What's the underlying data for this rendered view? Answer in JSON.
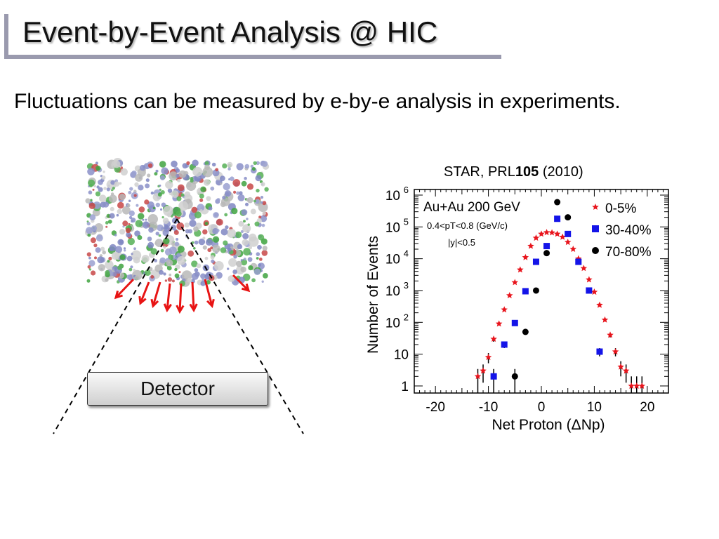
{
  "slide": {
    "title": "Event-by-Event Analysis @ HIC",
    "subtitle": "Fluctuations can be measured by e-by-e analysis in experiments.",
    "citation": {
      "prefix": "STAR, PRL",
      "volume": "105",
      "year": "(2010)"
    },
    "detector_label": "Detector"
  },
  "chart_data": {
    "type": "scatter",
    "xlabel": "Net Proton (ΔNp)",
    "ylabel": "Number of Events",
    "xlim": [
      -24,
      24
    ],
    "ylim": [
      0.6,
      1500000
    ],
    "yscale": "log",
    "xticks": [
      -20,
      -10,
      0,
      10,
      20
    ],
    "yticks": [
      {
        "v": 1,
        "label": "1"
      },
      {
        "v": 10,
        "label": "10"
      },
      {
        "v": 100,
        "label": "10",
        "exp": "2"
      },
      {
        "v": 1000,
        "label": "10",
        "exp": "3"
      },
      {
        "v": 10000,
        "label": "10",
        "exp": "4"
      },
      {
        "v": 100000,
        "label": "10",
        "exp": "5"
      },
      {
        "v": 1000000,
        "label": "10",
        "exp": "6"
      }
    ],
    "annotations": {
      "system": "Au+Au 200 GeV",
      "pt_cut": "0.4<pT<0.8 (GeV/c)",
      "y_cut": "|y|<0.5"
    },
    "legend_position": "top-right",
    "series": [
      {
        "name": "0-5%",
        "marker": "star",
        "color": "#e8141c",
        "x": [
          -12,
          -11,
          -10,
          -9,
          -8,
          -7,
          -6,
          -5,
          -4,
          -3,
          -2,
          -1,
          0,
          1,
          2,
          3,
          4,
          5,
          6,
          7,
          8,
          9,
          10,
          11,
          12,
          13,
          14,
          15,
          16,
          17,
          18,
          19
        ],
        "y": [
          2,
          3,
          8,
          30,
          90,
          250,
          700,
          1800,
          4500,
          11000,
          25000,
          45000,
          60000,
          67000,
          66000,
          60000,
          48000,
          33000,
          20000,
          10000,
          5000,
          2200,
          900,
          350,
          120,
          40,
          12,
          4,
          3,
          1,
          1,
          1
        ]
      },
      {
        "name": "30-40%",
        "marker": "square",
        "color": "#1414e8",
        "x": [
          -9,
          -7,
          -5,
          -3,
          -1,
          1,
          3,
          5,
          7,
          9,
          11
        ],
        "y": [
          2,
          20,
          95,
          950,
          8000,
          25000,
          180000,
          60000,
          8000,
          1000,
          12
        ]
      },
      {
        "name": "70-80%",
        "marker": "circle",
        "color": "#000000",
        "x": [
          -5,
          -3,
          -1,
          1,
          3,
          5
        ],
        "y": [
          2,
          50,
          1000,
          15000,
          600000,
          200000
        ]
      }
    ]
  }
}
